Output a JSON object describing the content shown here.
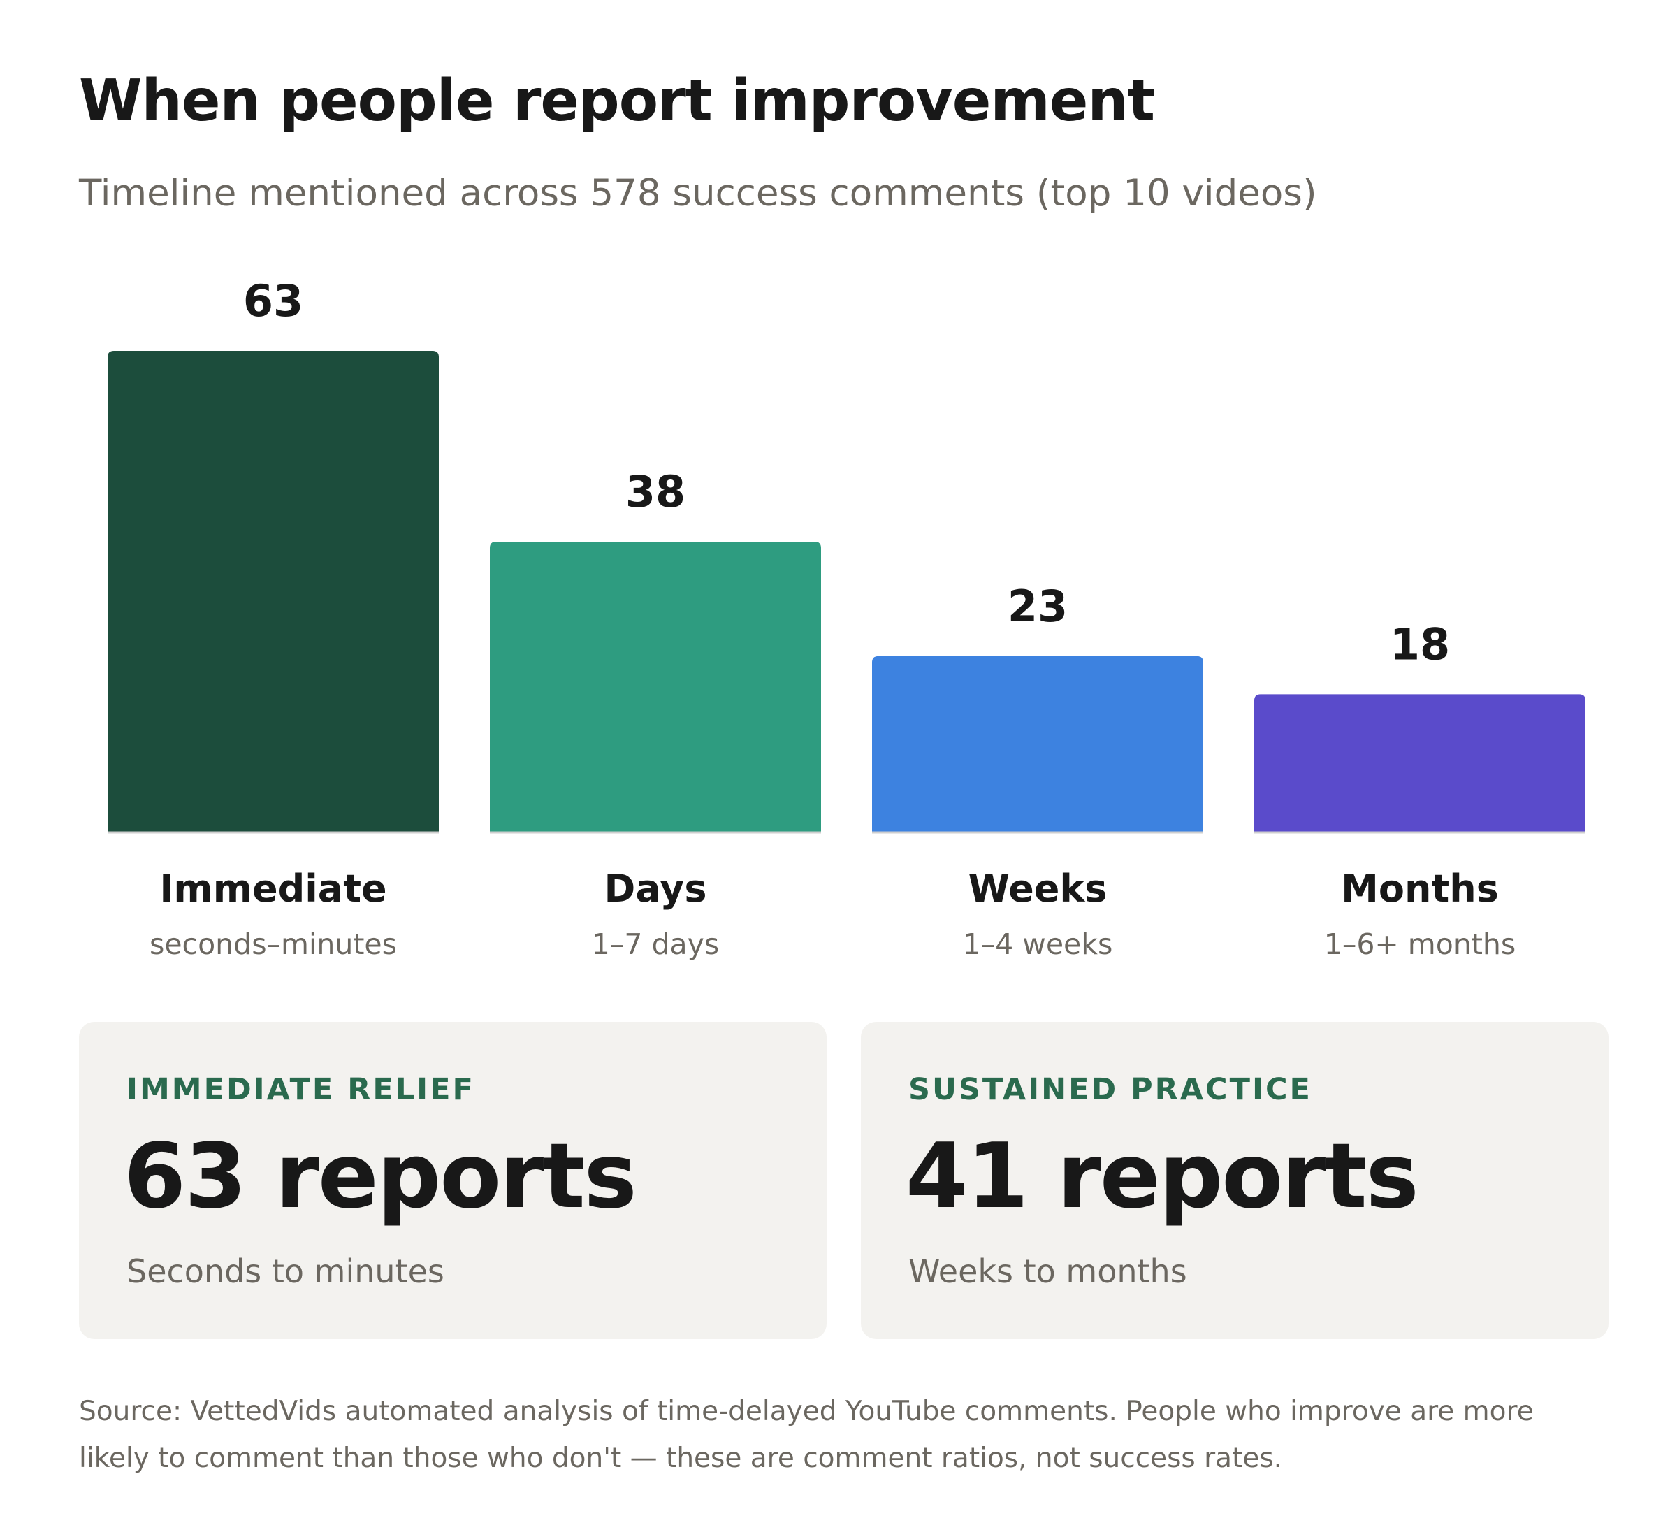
{
  "header": {
    "title": "When people report improvement",
    "subtitle": "Timeline mentioned across 578 success comments (top 10 videos)"
  },
  "chart_data": {
    "type": "bar",
    "categories": [
      "Immediate",
      "Days",
      "Weeks",
      "Months"
    ],
    "sublabels": [
      "seconds–minutes",
      "1–7 days",
      "1–4 weeks",
      "1–6+ months"
    ],
    "values": [
      63,
      38,
      23,
      18
    ],
    "colors": [
      "#1c4d3c",
      "#2e9c80",
      "#3d82e0",
      "#5a4bcb"
    ],
    "ylim": [
      0,
      63
    ],
    "grid": false,
    "legend": "none",
    "xlabel": "",
    "ylabel": ""
  },
  "cards": [
    {
      "label": "IMMEDIATE RELIEF",
      "value": "63 reports",
      "note": "Seconds to minutes"
    },
    {
      "label": "SUSTAINED PRACTICE",
      "value": "41 reports",
      "note": "Weeks to months"
    }
  ],
  "footer": {
    "source": "Source: VettedVids automated analysis of time-delayed YouTube comments. People who improve are more likely to comment than those who don't — these are comment ratios, not success rates."
  }
}
